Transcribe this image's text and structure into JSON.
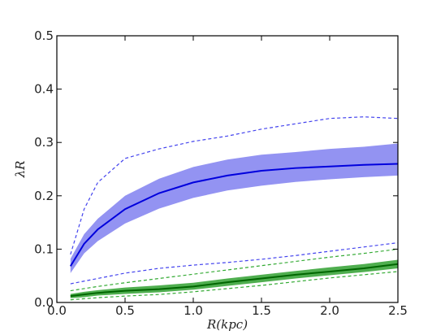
{
  "chart_data": {
    "type": "line",
    "xlabel": "R(kpc)",
    "ylabel": "λR",
    "xlim": [
      0.0,
      2.5
    ],
    "ylim": [
      0.0,
      0.5
    ],
    "x_ticks": [
      "0.0",
      "0.5",
      "1.0",
      "1.5",
      "2.0",
      "2.5"
    ],
    "y_ticks": [
      "0.0",
      "0.1",
      "0.2",
      "0.3",
      "0.4",
      "0.5"
    ],
    "grid": false,
    "x": [
      0.1,
      0.2,
      0.3,
      0.5,
      0.75,
      1.0,
      1.25,
      1.5,
      1.75,
      2.0,
      2.25,
      2.5
    ],
    "series": [
      {
        "color": "#0000dd",
        "style": "solid",
        "values": [
          0.068,
          0.11,
          0.137,
          0.175,
          0.205,
          0.225,
          0.238,
          0.247,
          0.252,
          0.255,
          0.258,
          0.26
        ],
        "band": {
          "fill": "#8080f0",
          "lower": [
            0.055,
            0.092,
            0.115,
            0.148,
            0.176,
            0.196,
            0.21,
            0.219,
            0.226,
            0.231,
            0.235,
            0.238
          ],
          "upper": [
            0.082,
            0.128,
            0.157,
            0.2,
            0.232,
            0.254,
            0.268,
            0.277,
            0.282,
            0.288,
            0.292,
            0.298
          ]
        }
      },
      {
        "color": "#4444ee",
        "style": "dashed",
        "values": [
          0.09,
          0.175,
          0.225,
          0.27,
          0.288,
          0.302,
          0.312,
          0.325,
          0.335,
          0.345,
          0.348,
          0.345
        ]
      },
      {
        "color": "#4444ee",
        "style": "dashed",
        "values": [
          0.035,
          0.04,
          0.045,
          0.055,
          0.064,
          0.07,
          0.075,
          0.081,
          0.088,
          0.096,
          0.104,
          0.112
        ]
      },
      {
        "color": "#006600",
        "style": "solid",
        "values": [
          0.012,
          0.015,
          0.018,
          0.022,
          0.025,
          0.03,
          0.038,
          0.045,
          0.052,
          0.058,
          0.064,
          0.072
        ],
        "band": {
          "fill": "#30a030",
          "lower": [
            0.008,
            0.01,
            0.013,
            0.016,
            0.019,
            0.024,
            0.031,
            0.038,
            0.045,
            0.051,
            0.057,
            0.064
          ],
          "upper": [
            0.016,
            0.02,
            0.023,
            0.028,
            0.032,
            0.037,
            0.045,
            0.052,
            0.059,
            0.066,
            0.072,
            0.08
          ]
        }
      },
      {
        "color": "#33aa33",
        "style": "dashed",
        "values": [
          0.022,
          0.026,
          0.03,
          0.037,
          0.045,
          0.053,
          0.061,
          0.069,
          0.077,
          0.085,
          0.092,
          0.1
        ]
      },
      {
        "color": "#33aa33",
        "style": "dashed",
        "values": [
          0.005,
          0.007,
          0.009,
          0.012,
          0.015,
          0.02,
          0.026,
          0.032,
          0.039,
          0.046,
          0.052,
          0.058
        ]
      }
    ]
  }
}
